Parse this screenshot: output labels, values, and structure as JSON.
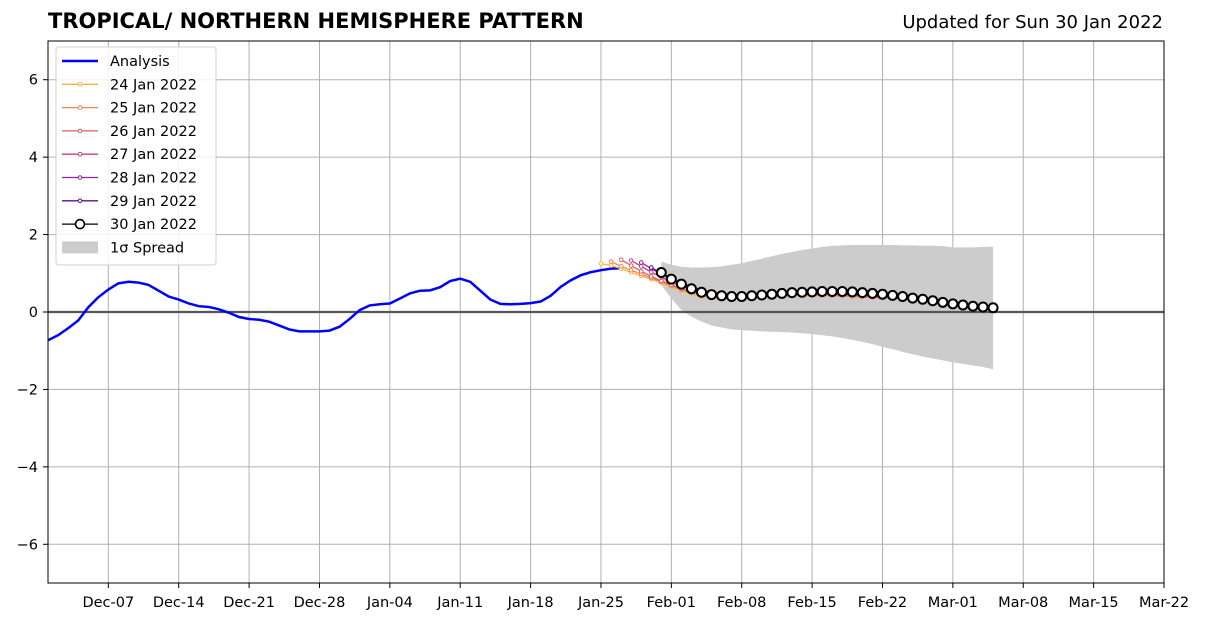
{
  "header": {
    "title": "TROPICAL/ NORTHERN HEMISPHERE PATTERN",
    "subtitle": "Updated for Sun 30 Jan 2022"
  },
  "chart_data": {
    "type": "line",
    "title": "TROPICAL/ NORTHERN HEMISPHERE PATTERN",
    "subtitle": "Updated for Sun 30 Jan 2022",
    "xlabel": "",
    "ylabel": "",
    "xlim": [
      "2021-12-01",
      "2022-03-22"
    ],
    "ylim": [
      -7,
      7
    ],
    "x_ticks": [
      {
        "date": "2021-12-07",
        "label": "Dec-07"
      },
      {
        "date": "2021-12-14",
        "label": "Dec-14"
      },
      {
        "date": "2021-12-21",
        "label": "Dec-21"
      },
      {
        "date": "2021-12-28",
        "label": "Dec-28"
      },
      {
        "date": "2022-01-04",
        "label": "Jan-04"
      },
      {
        "date": "2022-01-11",
        "label": "Jan-11"
      },
      {
        "date": "2022-01-18",
        "label": "Jan-18"
      },
      {
        "date": "2022-01-25",
        "label": "Jan-25"
      },
      {
        "date": "2022-02-01",
        "label": "Feb-01"
      },
      {
        "date": "2022-02-08",
        "label": "Feb-08"
      },
      {
        "date": "2022-02-15",
        "label": "Feb-15"
      },
      {
        "date": "2022-02-22",
        "label": "Feb-22"
      },
      {
        "date": "2022-03-01",
        "label": "Mar-01"
      },
      {
        "date": "2022-03-08",
        "label": "Mar-08"
      },
      {
        "date": "2022-03-15",
        "label": "Mar-15"
      },
      {
        "date": "2022-03-22",
        "label": "Mar-22"
      }
    ],
    "y_ticks": [
      {
        "value": 6,
        "label": "6"
      },
      {
        "value": 4,
        "label": "4"
      },
      {
        "value": 2,
        "label": "2"
      },
      {
        "value": 0,
        "label": "0"
      },
      {
        "value": -2,
        "label": "−2"
      },
      {
        "value": -4,
        "label": "−4"
      },
      {
        "value": -6,
        "label": "−6"
      }
    ],
    "grid": true,
    "zero_line": true,
    "legend": {
      "placement": "top-left",
      "items": [
        {
          "label": "Analysis",
          "color": "#0000ff",
          "kind": "line"
        },
        {
          "label": "24 Jan 2022",
          "color": "#fbb33b",
          "kind": "line-dot"
        },
        {
          "label": "25 Jan 2022",
          "color": "#f3854a",
          "kind": "line-dot"
        },
        {
          "label": "26 Jan 2022",
          "color": "#df5c68",
          "kind": "line-dot"
        },
        {
          "label": "27 Jan 2022",
          "color": "#c0408a",
          "kind": "line-dot"
        },
        {
          "label": "28 Jan 2022",
          "color": "#9722a0",
          "kind": "line-dot"
        },
        {
          "label": "29 Jan 2022",
          "color": "#5d0f90",
          "kind": "line-dot"
        },
        {
          "label": "30 Jan 2022",
          "color": "#000000",
          "kind": "line-circle"
        },
        {
          "label": "1σ Spread",
          "color": "#cccccc",
          "kind": "patch"
        }
      ]
    },
    "series": [
      {
        "name": "Analysis",
        "color": "#0000ff",
        "dates": [
          "2021-12-01",
          "2021-12-02",
          "2021-12-03",
          "2021-12-04",
          "2021-12-05",
          "2021-12-06",
          "2021-12-07",
          "2021-12-08",
          "2021-12-09",
          "2021-12-10",
          "2021-12-11",
          "2021-12-12",
          "2021-12-13",
          "2021-12-14",
          "2021-12-15",
          "2021-12-16",
          "2021-12-17",
          "2021-12-18",
          "2021-12-19",
          "2021-12-20",
          "2021-12-21",
          "2021-12-22",
          "2021-12-23",
          "2021-12-24",
          "2021-12-25",
          "2021-12-26",
          "2021-12-27",
          "2021-12-28",
          "2021-12-29",
          "2021-12-30",
          "2021-12-31",
          "2022-01-01",
          "2022-01-02",
          "2022-01-03",
          "2022-01-04",
          "2022-01-05",
          "2022-01-06",
          "2022-01-07",
          "2022-01-08",
          "2022-01-09",
          "2022-01-10",
          "2022-01-11",
          "2022-01-12",
          "2022-01-13",
          "2022-01-14",
          "2022-01-15",
          "2022-01-16",
          "2022-01-17",
          "2022-01-18",
          "2022-01-19",
          "2022-01-20",
          "2022-01-21",
          "2022-01-22",
          "2022-01-23",
          "2022-01-24",
          "2022-01-25",
          "2022-01-26",
          "2022-01-27"
        ],
        "values": [
          -0.73,
          -0.6,
          -0.42,
          -0.22,
          0.12,
          0.38,
          0.58,
          0.74,
          0.78,
          0.76,
          0.7,
          0.55,
          0.4,
          0.32,
          0.22,
          0.15,
          0.13,
          0.07,
          -0.02,
          -0.13,
          -0.18,
          -0.2,
          -0.25,
          -0.35,
          -0.45,
          -0.5,
          -0.5,
          -0.5,
          -0.48,
          -0.38,
          -0.18,
          0.05,
          0.17,
          0.2,
          0.22,
          0.35,
          0.48,
          0.55,
          0.56,
          0.64,
          0.8,
          0.86,
          0.78,
          0.55,
          0.32,
          0.21,
          0.2,
          0.21,
          0.23,
          0.27,
          0.42,
          0.65,
          0.82,
          0.95,
          1.03,
          1.08,
          1.12,
          1.13
        ]
      },
      {
        "name": "24 Jan 2022",
        "color": "#fbb33b",
        "dates": [
          "2022-01-25",
          "2022-01-26",
          "2022-01-27",
          "2022-01-28",
          "2022-01-29",
          "2022-01-30",
          "2022-01-31",
          "2022-02-01",
          "2022-02-02",
          "2022-02-03",
          "2022-02-04",
          "2022-02-05",
          "2022-02-06",
          "2022-02-07",
          "2022-02-08",
          "2022-02-09",
          "2022-02-10",
          "2022-02-11",
          "2022-02-12",
          "2022-02-13",
          "2022-02-14",
          "2022-02-15",
          "2022-02-16",
          "2022-02-17",
          "2022-02-18",
          "2022-02-19",
          "2022-02-20",
          "2022-02-21",
          "2022-02-22",
          "2022-02-23"
        ],
        "values": [
          1.25,
          1.2,
          1.12,
          1.02,
          0.93,
          0.85,
          0.75,
          0.65,
          0.55,
          0.47,
          0.4,
          0.37,
          0.35,
          0.35,
          0.36,
          0.37,
          0.38,
          0.4,
          0.41,
          0.42,
          0.42,
          0.42,
          0.42,
          0.42,
          0.41,
          0.4,
          0.39,
          0.38,
          0.37,
          0.36
        ]
      },
      {
        "name": "25 Jan 2022",
        "color": "#f3854a",
        "dates": [
          "2022-01-26",
          "2022-01-27",
          "2022-01-28",
          "2022-01-29",
          "2022-01-30",
          "2022-01-31",
          "2022-02-01",
          "2022-02-02",
          "2022-02-03",
          "2022-02-04",
          "2022-02-05",
          "2022-02-06",
          "2022-02-07",
          "2022-02-08",
          "2022-02-09",
          "2022-02-10",
          "2022-02-11",
          "2022-02-12",
          "2022-02-13",
          "2022-02-14",
          "2022-02-15",
          "2022-02-16",
          "2022-02-17",
          "2022-02-18",
          "2022-02-19",
          "2022-02-20",
          "2022-02-21",
          "2022-02-22",
          "2022-02-23",
          "2022-02-24"
        ],
        "values": [
          1.3,
          1.18,
          1.08,
          0.98,
          0.88,
          0.78,
          0.68,
          0.58,
          0.5,
          0.43,
          0.39,
          0.37,
          0.37,
          0.38,
          0.39,
          0.4,
          0.41,
          0.42,
          0.43,
          0.43,
          0.43,
          0.43,
          0.42,
          0.41,
          0.4,
          0.39,
          0.38,
          0.37,
          0.36,
          0.35
        ]
      },
      {
        "name": "26 Jan 2022",
        "color": "#df5c68",
        "dates": [
          "2022-01-27",
          "2022-01-28",
          "2022-01-29",
          "2022-01-30",
          "2022-01-31",
          "2022-02-01",
          "2022-02-02",
          "2022-02-03",
          "2022-02-04",
          "2022-02-05",
          "2022-02-06",
          "2022-02-07",
          "2022-02-08",
          "2022-02-09",
          "2022-02-10",
          "2022-02-11",
          "2022-02-12",
          "2022-02-13",
          "2022-02-14",
          "2022-02-15",
          "2022-02-16",
          "2022-02-17",
          "2022-02-18",
          "2022-02-19",
          "2022-02-20",
          "2022-02-21",
          "2022-02-22",
          "2022-02-23",
          "2022-02-24",
          "2022-02-25"
        ],
        "values": [
          1.35,
          1.2,
          1.05,
          0.92,
          0.8,
          0.7,
          0.6,
          0.52,
          0.46,
          0.42,
          0.4,
          0.4,
          0.41,
          0.42,
          0.43,
          0.44,
          0.45,
          0.46,
          0.46,
          0.46,
          0.46,
          0.45,
          0.44,
          0.43,
          0.42,
          0.4,
          0.39,
          0.38,
          0.37,
          0.35
        ]
      },
      {
        "name": "27 Jan 2022",
        "color": "#c0408a",
        "dates": [
          "2022-01-28",
          "2022-01-29",
          "2022-01-30",
          "2022-01-31",
          "2022-02-01",
          "2022-02-02",
          "2022-02-03",
          "2022-02-04",
          "2022-02-05",
          "2022-02-06",
          "2022-02-07",
          "2022-02-08",
          "2022-02-09",
          "2022-02-10",
          "2022-02-11",
          "2022-02-12",
          "2022-02-13",
          "2022-02-14",
          "2022-02-15",
          "2022-02-16",
          "2022-02-17",
          "2022-02-18",
          "2022-02-19",
          "2022-02-20",
          "2022-02-21",
          "2022-02-22",
          "2022-02-23",
          "2022-02-24",
          "2022-02-25",
          "2022-02-26"
        ],
        "values": [
          1.33,
          1.18,
          1.03,
          0.9,
          0.78,
          0.67,
          0.58,
          0.51,
          0.46,
          0.43,
          0.42,
          0.42,
          0.43,
          0.44,
          0.45,
          0.46,
          0.47,
          0.47,
          0.47,
          0.47,
          0.46,
          0.45,
          0.44,
          0.43,
          0.42,
          0.41,
          0.39,
          0.38,
          0.36,
          0.34
        ]
      },
      {
        "name": "28 Jan 2022",
        "color": "#9722a0",
        "dates": [
          "2022-01-29",
          "2022-01-30",
          "2022-01-31",
          "2022-02-01",
          "2022-02-02",
          "2022-02-03",
          "2022-02-04",
          "2022-02-05",
          "2022-02-06",
          "2022-02-07",
          "2022-02-08",
          "2022-02-09",
          "2022-02-10",
          "2022-02-11",
          "2022-02-12",
          "2022-02-13",
          "2022-02-14",
          "2022-02-15",
          "2022-02-16",
          "2022-02-17",
          "2022-02-18",
          "2022-02-19",
          "2022-02-20",
          "2022-02-21",
          "2022-02-22",
          "2022-02-23",
          "2022-02-24",
          "2022-02-25",
          "2022-02-26",
          "2022-02-27"
        ],
        "values": [
          1.28,
          1.12,
          0.98,
          0.85,
          0.73,
          0.63,
          0.55,
          0.49,
          0.45,
          0.43,
          0.43,
          0.44,
          0.45,
          0.46,
          0.47,
          0.48,
          0.48,
          0.48,
          0.48,
          0.47,
          0.46,
          0.45,
          0.44,
          0.43,
          0.42,
          0.4,
          0.38,
          0.36,
          0.34,
          0.32
        ]
      },
      {
        "name": "29 Jan 2022",
        "color": "#5d0f90",
        "dates": [
          "2022-01-30",
          "2022-01-31",
          "2022-02-01",
          "2022-02-02",
          "2022-02-03",
          "2022-02-04",
          "2022-02-05",
          "2022-02-06",
          "2022-02-07",
          "2022-02-08",
          "2022-02-09",
          "2022-02-10",
          "2022-02-11",
          "2022-02-12",
          "2022-02-13",
          "2022-02-14",
          "2022-02-15",
          "2022-02-16",
          "2022-02-17",
          "2022-02-18",
          "2022-02-19",
          "2022-02-20",
          "2022-02-21",
          "2022-02-22",
          "2022-02-23",
          "2022-02-24",
          "2022-02-25",
          "2022-02-26",
          "2022-02-27",
          "2022-02-28"
        ],
        "values": [
          1.15,
          1.0,
          0.87,
          0.75,
          0.65,
          0.57,
          0.51,
          0.47,
          0.45,
          0.45,
          0.46,
          0.47,
          0.48,
          0.49,
          0.5,
          0.5,
          0.5,
          0.5,
          0.49,
          0.48,
          0.47,
          0.46,
          0.45,
          0.44,
          0.42,
          0.4,
          0.38,
          0.36,
          0.33,
          0.3
        ]
      },
      {
        "name": "30 Jan 2022",
        "color": "#000000",
        "dates": [
          "2022-01-31",
          "2022-02-01",
          "2022-02-02",
          "2022-02-03",
          "2022-02-04",
          "2022-02-05",
          "2022-02-06",
          "2022-02-07",
          "2022-02-08",
          "2022-02-09",
          "2022-02-10",
          "2022-02-11",
          "2022-02-12",
          "2022-02-13",
          "2022-02-14",
          "2022-02-15",
          "2022-02-16",
          "2022-02-17",
          "2022-02-18",
          "2022-02-19",
          "2022-02-20",
          "2022-02-21",
          "2022-02-22",
          "2022-02-23",
          "2022-02-24",
          "2022-02-25",
          "2022-02-26",
          "2022-02-27",
          "2022-02-28",
          "2022-03-01",
          "2022-03-02",
          "2022-03-03",
          "2022-03-04",
          "2022-03-05"
        ],
        "values": [
          1.02,
          0.85,
          0.72,
          0.6,
          0.51,
          0.45,
          0.42,
          0.4,
          0.4,
          0.42,
          0.44,
          0.46,
          0.48,
          0.5,
          0.51,
          0.52,
          0.53,
          0.53,
          0.53,
          0.52,
          0.5,
          0.48,
          0.46,
          0.43,
          0.4,
          0.36,
          0.33,
          0.29,
          0.25,
          0.21,
          0.18,
          0.15,
          0.13,
          0.11
        ]
      }
    ],
    "spread": {
      "name": "1σ Spread",
      "color": "#cccccc",
      "dates": [
        "2022-01-31",
        "2022-02-01",
        "2022-02-02",
        "2022-02-03",
        "2022-02-04",
        "2022-02-05",
        "2022-02-06",
        "2022-02-07",
        "2022-02-08",
        "2022-02-09",
        "2022-02-10",
        "2022-02-11",
        "2022-02-12",
        "2022-02-13",
        "2022-02-14",
        "2022-02-15",
        "2022-02-16",
        "2022-02-17",
        "2022-02-18",
        "2022-02-19",
        "2022-02-20",
        "2022-02-21",
        "2022-02-22",
        "2022-02-23",
        "2022-02-24",
        "2022-02-25",
        "2022-02-26",
        "2022-02-27",
        "2022-02-28",
        "2022-03-01",
        "2022-03-02",
        "2022-03-03",
        "2022-03-04",
        "2022-03-05"
      ],
      "upper": [
        1.3,
        1.22,
        1.17,
        1.15,
        1.15,
        1.16,
        1.18,
        1.22,
        1.26,
        1.32,
        1.38,
        1.44,
        1.5,
        1.55,
        1.6,
        1.64,
        1.68,
        1.71,
        1.72,
        1.73,
        1.73,
        1.73,
        1.73,
        1.73,
        1.72,
        1.72,
        1.71,
        1.71,
        1.7,
        1.67,
        1.67,
        1.67,
        1.68,
        1.69
      ],
      "lower": [
        0.7,
        0.35,
        0.05,
        -0.12,
        -0.25,
        -0.35,
        -0.4,
        -0.45,
        -0.47,
        -0.48,
        -0.5,
        -0.51,
        -0.52,
        -0.53,
        -0.55,
        -0.57,
        -0.6,
        -0.63,
        -0.67,
        -0.72,
        -0.77,
        -0.83,
        -0.9,
        -0.96,
        -1.03,
        -1.09,
        -1.15,
        -1.2,
        -1.25,
        -1.3,
        -1.34,
        -1.38,
        -1.42,
        -1.48
      ]
    }
  }
}
